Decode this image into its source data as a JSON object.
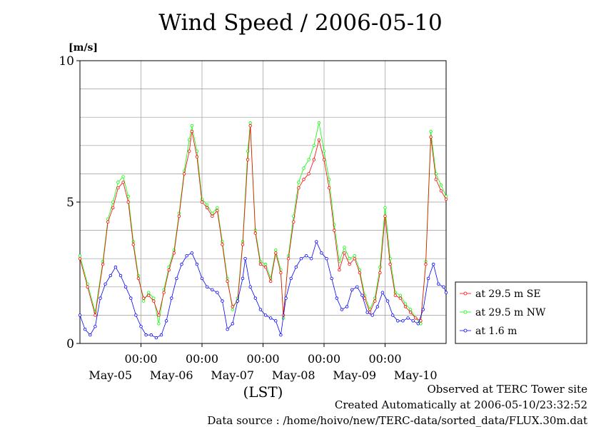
{
  "chart_data": {
    "type": "line",
    "title": "Wind Speed / 2006-05-10",
    "ylabel": "[m/s]",
    "xlabel": "(LST)",
    "ylim": [
      0,
      10
    ],
    "y_ticks": [
      "0",
      "5",
      "10"
    ],
    "x_time_ticks": [
      "00:00",
      "00:00",
      "00:00",
      "00:00",
      "00:00"
    ],
    "x_date_labels": [
      "May-05",
      "May-06",
      "May-07",
      "May-08",
      "May-09",
      "May-10"
    ],
    "xlim_hours": [
      0,
      144
    ],
    "grid": true,
    "legend_position": "right",
    "series": [
      {
        "name": "at 29.5 m SE",
        "color": "#ff0000",
        "points": [
          [
            0,
            3.0
          ],
          [
            3,
            2.0
          ],
          [
            6,
            1.0
          ],
          [
            9,
            2.8
          ],
          [
            11,
            4.3
          ],
          [
            13,
            4.8
          ],
          [
            15,
            5.5
          ],
          [
            17,
            5.7
          ],
          [
            19,
            5.0
          ],
          [
            21,
            3.5
          ],
          [
            23,
            2.3
          ],
          [
            25,
            1.6
          ],
          [
            27,
            1.7
          ],
          [
            29,
            1.5
          ],
          [
            31,
            1.0
          ],
          [
            33,
            1.8
          ],
          [
            35,
            2.6
          ],
          [
            37,
            3.2
          ],
          [
            39,
            4.5
          ],
          [
            41,
            6.0
          ],
          [
            43,
            6.8
          ],
          [
            44,
            7.5
          ],
          [
            46,
            6.6
          ],
          [
            48,
            5.0
          ],
          [
            50,
            4.8
          ],
          [
            52,
            4.5
          ],
          [
            54,
            4.7
          ],
          [
            56,
            3.5
          ],
          [
            58,
            2.2
          ],
          [
            60,
            1.3
          ],
          [
            62,
            1.5
          ],
          [
            64,
            3.5
          ],
          [
            66,
            6.5
          ],
          [
            67,
            7.7
          ],
          [
            69,
            3.9
          ],
          [
            71,
            2.8
          ],
          [
            73,
            2.7
          ],
          [
            75,
            2.2
          ],
          [
            77,
            3.2
          ],
          [
            79,
            2.5
          ],
          [
            80,
            1.0
          ],
          [
            82,
            3.0
          ],
          [
            84,
            4.3
          ],
          [
            86,
            5.5
          ],
          [
            88,
            5.8
          ],
          [
            90,
            6.0
          ],
          [
            92,
            6.5
          ],
          [
            94,
            7.2
          ],
          [
            96,
            6.5
          ],
          [
            98,
            5.5
          ],
          [
            100,
            4.0
          ],
          [
            102,
            2.6
          ],
          [
            104,
            3.2
          ],
          [
            106,
            2.8
          ],
          [
            108,
            3.0
          ],
          [
            110,
            2.5
          ],
          [
            112,
            1.6
          ],
          [
            114,
            1.1
          ],
          [
            116,
            1.5
          ],
          [
            118,
            2.5
          ],
          [
            120,
            4.5
          ],
          [
            122,
            2.8
          ],
          [
            124,
            1.7
          ],
          [
            126,
            1.6
          ],
          [
            128,
            1.3
          ],
          [
            130,
            1.1
          ],
          [
            132,
            0.9
          ],
          [
            134,
            0.8
          ],
          [
            136,
            2.8
          ],
          [
            138,
            7.3
          ],
          [
            140,
            5.8
          ],
          [
            142,
            5.4
          ],
          [
            144,
            5.1
          ]
        ]
      },
      {
        "name": "at 29.5 m NW",
        "color": "#00ff00",
        "points": [
          [
            0,
            3.1
          ],
          [
            3,
            2.1
          ],
          [
            6,
            1.1
          ],
          [
            9,
            2.9
          ],
          [
            11,
            4.4
          ],
          [
            13,
            5.0
          ],
          [
            15,
            5.7
          ],
          [
            17,
            5.9
          ],
          [
            19,
            5.2
          ],
          [
            21,
            3.6
          ],
          [
            23,
            2.4
          ],
          [
            25,
            1.5
          ],
          [
            27,
            1.8
          ],
          [
            29,
            1.6
          ],
          [
            31,
            0.7
          ],
          [
            33,
            1.9
          ],
          [
            35,
            2.7
          ],
          [
            37,
            3.3
          ],
          [
            39,
            4.6
          ],
          [
            41,
            6.1
          ],
          [
            43,
            7.2
          ],
          [
            44,
            7.7
          ],
          [
            46,
            6.8
          ],
          [
            48,
            5.1
          ],
          [
            50,
            4.9
          ],
          [
            52,
            4.6
          ],
          [
            54,
            4.8
          ],
          [
            56,
            3.6
          ],
          [
            58,
            2.3
          ],
          [
            60,
            1.2
          ],
          [
            62,
            1.6
          ],
          [
            64,
            3.6
          ],
          [
            66,
            6.8
          ],
          [
            67,
            7.8
          ],
          [
            69,
            4.0
          ],
          [
            71,
            2.9
          ],
          [
            73,
            2.8
          ],
          [
            75,
            2.3
          ],
          [
            77,
            3.3
          ],
          [
            79,
            2.6
          ],
          [
            80,
            0.9
          ],
          [
            82,
            3.1
          ],
          [
            84,
            4.5
          ],
          [
            86,
            5.7
          ],
          [
            88,
            6.2
          ],
          [
            90,
            6.5
          ],
          [
            92,
            7.0
          ],
          [
            94,
            7.8
          ],
          [
            96,
            6.8
          ],
          [
            98,
            5.8
          ],
          [
            100,
            4.2
          ],
          [
            102,
            2.9
          ],
          [
            104,
            3.4
          ],
          [
            106,
            3.0
          ],
          [
            108,
            3.1
          ],
          [
            110,
            2.6
          ],
          [
            112,
            1.7
          ],
          [
            114,
            1.2
          ],
          [
            116,
            1.6
          ],
          [
            118,
            2.7
          ],
          [
            120,
            4.8
          ],
          [
            122,
            3.0
          ],
          [
            124,
            1.8
          ],
          [
            126,
            1.7
          ],
          [
            128,
            1.4
          ],
          [
            130,
            1.2
          ],
          [
            132,
            0.9
          ],
          [
            134,
            0.7
          ],
          [
            136,
            2.9
          ],
          [
            138,
            7.5
          ],
          [
            140,
            6.0
          ],
          [
            142,
            5.6
          ],
          [
            144,
            5.2
          ]
        ]
      },
      {
        "name": "at 1.6 m",
        "color": "#0000ff",
        "points": [
          [
            0,
            1.0
          ],
          [
            2,
            0.5
          ],
          [
            4,
            0.3
          ],
          [
            6,
            0.6
          ],
          [
            8,
            1.6
          ],
          [
            10,
            2.1
          ],
          [
            12,
            2.4
          ],
          [
            14,
            2.7
          ],
          [
            16,
            2.4
          ],
          [
            18,
            2.0
          ],
          [
            20,
            1.6
          ],
          [
            22,
            1.0
          ],
          [
            24,
            0.6
          ],
          [
            26,
            0.3
          ],
          [
            28,
            0.3
          ],
          [
            30,
            0.2
          ],
          [
            32,
            0.3
          ],
          [
            34,
            0.8
          ],
          [
            36,
            1.6
          ],
          [
            38,
            2.3
          ],
          [
            40,
            2.8
          ],
          [
            42,
            3.1
          ],
          [
            44,
            3.2
          ],
          [
            46,
            2.8
          ],
          [
            48,
            2.3
          ],
          [
            50,
            2.0
          ],
          [
            52,
            1.9
          ],
          [
            54,
            1.8
          ],
          [
            56,
            1.5
          ],
          [
            58,
            0.5
          ],
          [
            60,
            0.7
          ],
          [
            62,
            1.5
          ],
          [
            64,
            2.3
          ],
          [
            65,
            3.0
          ],
          [
            67,
            2.0
          ],
          [
            69,
            1.6
          ],
          [
            71,
            1.2
          ],
          [
            73,
            1.0
          ],
          [
            75,
            0.9
          ],
          [
            77,
            0.8
          ],
          [
            79,
            0.3
          ],
          [
            81,
            1.6
          ],
          [
            83,
            2.3
          ],
          [
            85,
            2.7
          ],
          [
            87,
            3.0
          ],
          [
            89,
            3.1
          ],
          [
            91,
            3.0
          ],
          [
            93,
            3.6
          ],
          [
            95,
            3.2
          ],
          [
            97,
            3.0
          ],
          [
            99,
            2.3
          ],
          [
            101,
            1.6
          ],
          [
            103,
            1.2
          ],
          [
            105,
            1.3
          ],
          [
            107,
            1.9
          ],
          [
            109,
            2.0
          ],
          [
            111,
            1.7
          ],
          [
            113,
            1.1
          ],
          [
            115,
            1.0
          ],
          [
            117,
            1.3
          ],
          [
            119,
            1.8
          ],
          [
            121,
            1.5
          ],
          [
            123,
            1.0
          ],
          [
            125,
            0.8
          ],
          [
            127,
            0.8
          ],
          [
            129,
            0.9
          ],
          [
            131,
            0.8
          ],
          [
            133,
            0.7
          ],
          [
            135,
            1.2
          ],
          [
            137,
            2.3
          ],
          [
            139,
            2.8
          ],
          [
            141,
            2.1
          ],
          [
            143,
            2.0
          ],
          [
            144,
            1.8
          ]
        ]
      }
    ]
  },
  "footer": {
    "line1": "Observed at TERC Tower site",
    "line2": "Created Automatically at 2006-05-10/23:32:52",
    "line3": "Data source : /home/hoivo/new/TERC-data/sorted_data/FLUX.30m.dat"
  }
}
